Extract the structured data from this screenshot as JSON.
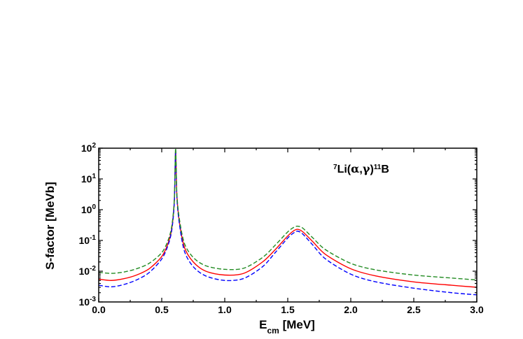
{
  "chart_data": {
    "type": "line",
    "annotation": {
      "pre": "7",
      "mid": "Li(",
      "alpha": "α",
      "comma": ",",
      "gamma": "γ",
      "close": ")",
      "post": "11",
      "end": "B"
    },
    "xlabel": {
      "main": "E",
      "sub": "cm",
      "unit": " [MeV]"
    },
    "ylabel": "S-factor [MeVb]",
    "xlim": [
      0.0,
      3.0
    ],
    "ylim": [
      0.001,
      100
    ],
    "y_scale": "log",
    "x_ticks": [
      "0.0",
      "0.5",
      "1.0",
      "1.5",
      "2.0",
      "2.5",
      "3.0"
    ],
    "y_ticks": [
      {
        "base": "10",
        "exp": "-3"
      },
      {
        "base": "10",
        "exp": "-2"
      },
      {
        "base": "10",
        "exp": "-1"
      },
      {
        "base": "10",
        "exp": "0"
      },
      {
        "base": "10",
        "exp": "1"
      },
      {
        "base": "10",
        "exp": "2"
      }
    ],
    "series": [
      {
        "color": "#ff0000",
        "dash": "solid",
        "x": [
          0.0,
          0.1,
          0.2,
          0.3,
          0.4,
          0.5,
          0.55,
          0.58,
          0.6,
          0.61,
          0.62,
          0.64,
          0.68,
          0.75,
          0.85,
          1.0,
          1.15,
          1.3,
          1.4,
          1.5,
          1.55,
          1.58,
          1.62,
          1.7,
          1.8,
          2.0,
          2.2,
          2.5,
          2.8,
          3.0
        ],
        "y": [
          0.0055,
          0.005,
          0.0057,
          0.0075,
          0.012,
          0.03,
          0.08,
          0.25,
          2.0,
          80,
          3.0,
          0.4,
          0.06,
          0.02,
          0.01,
          0.0075,
          0.0085,
          0.02,
          0.05,
          0.14,
          0.21,
          0.23,
          0.19,
          0.09,
          0.035,
          0.012,
          0.007,
          0.0045,
          0.0035,
          0.003
        ]
      },
      {
        "color": "#0000ff",
        "dash": "dashed",
        "x": [
          0.0,
          0.1,
          0.2,
          0.3,
          0.4,
          0.5,
          0.55,
          0.58,
          0.6,
          0.61,
          0.62,
          0.64,
          0.68,
          0.75,
          0.85,
          1.0,
          1.15,
          1.3,
          1.4,
          1.5,
          1.55,
          1.58,
          1.62,
          1.7,
          1.8,
          2.0,
          2.2,
          2.5,
          2.8,
          3.0
        ],
        "y": [
          0.0035,
          0.0031,
          0.0037,
          0.0052,
          0.009,
          0.025,
          0.07,
          0.22,
          1.8,
          85,
          2.6,
          0.35,
          0.045,
          0.014,
          0.007,
          0.005,
          0.0058,
          0.014,
          0.04,
          0.12,
          0.18,
          0.2,
          0.16,
          0.07,
          0.025,
          0.008,
          0.0045,
          0.0028,
          0.002,
          0.0017
        ]
      },
      {
        "color": "#228b22",
        "dash": "dashed",
        "x": [
          0.0,
          0.1,
          0.2,
          0.3,
          0.4,
          0.5,
          0.55,
          0.58,
          0.6,
          0.61,
          0.62,
          0.64,
          0.68,
          0.75,
          0.85,
          1.0,
          1.15,
          1.3,
          1.4,
          1.5,
          1.55,
          1.58,
          1.62,
          1.7,
          1.8,
          2.0,
          2.2,
          2.5,
          2.8,
          3.0
        ],
        "y": [
          0.0092,
          0.0085,
          0.0094,
          0.012,
          0.018,
          0.04,
          0.1,
          0.3,
          2.3,
          100,
          3.4,
          0.5,
          0.08,
          0.028,
          0.015,
          0.0115,
          0.0125,
          0.028,
          0.07,
          0.19,
          0.27,
          0.29,
          0.25,
          0.12,
          0.05,
          0.018,
          0.011,
          0.0075,
          0.006,
          0.0052
        ]
      }
    ],
    "grid": false,
    "legend": "none"
  }
}
